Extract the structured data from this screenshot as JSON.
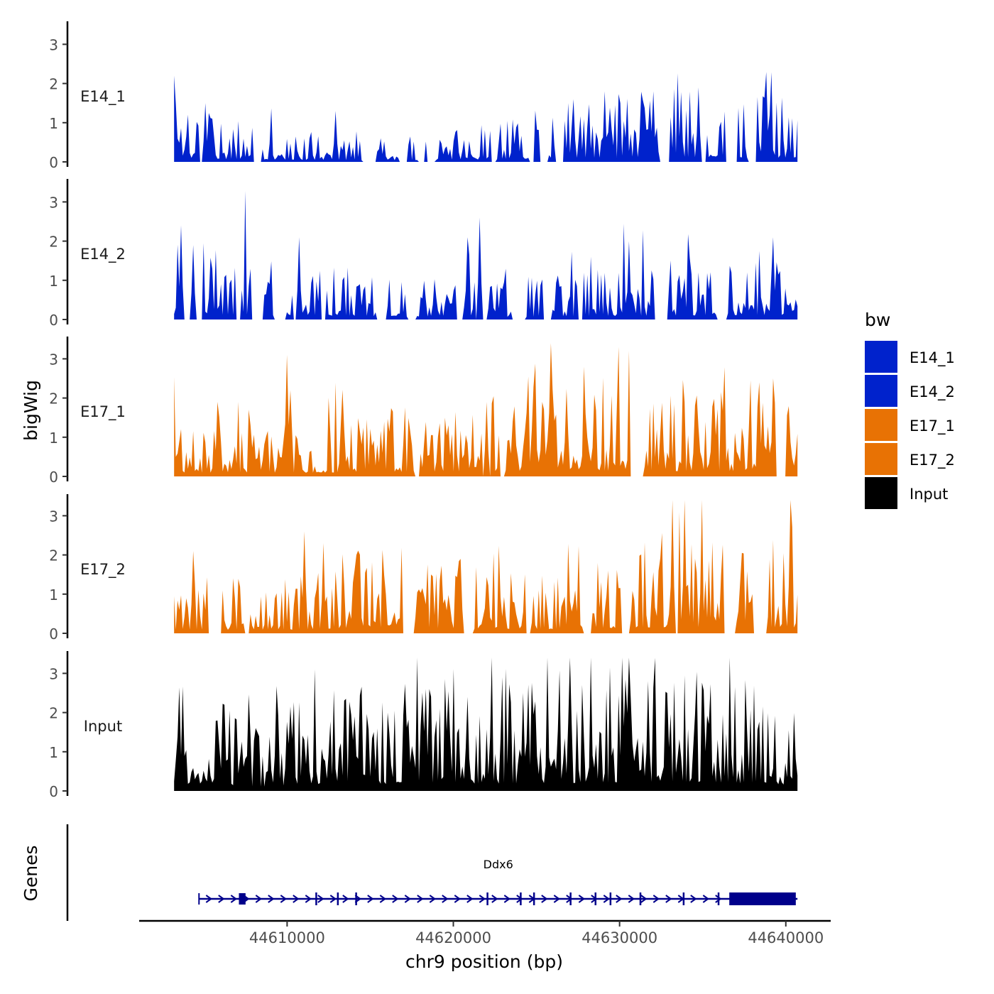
{
  "chart_data": {
    "type": "area",
    "ylabel": "bigWig",
    "xlabel": "chr9 position (bp)",
    "gene_track_label": "Genes",
    "legend": {
      "title": "bw",
      "position": "right",
      "entries": [
        {
          "name": "E14_1",
          "color": "#0022CC"
        },
        {
          "name": "E14_2",
          "color": "#0022CC"
        },
        {
          "name": "E17_1",
          "color": "#E87204"
        },
        {
          "name": "E17_2",
          "color": "#E87204"
        },
        {
          "name": "Input",
          "color": "#000000"
        }
      ]
    },
    "xlim": [
      44601100,
      44642700
    ],
    "data_x_range": [
      44603200,
      44640700
    ],
    "x_ticks": [
      44610000,
      44620000,
      44630000,
      44640000
    ],
    "x_tick_labels": [
      "44610000",
      "44620000",
      "44630000",
      "44640000"
    ],
    "ylim": [
      0,
      3.5
    ],
    "y_ticks": [
      0,
      1,
      2,
      3
    ],
    "y_tick_labels": [
      "0",
      "1",
      "2",
      "3"
    ],
    "series": [
      {
        "name": "E14_1",
        "color": "#0022CC",
        "seed": 11,
        "profile": [
          [
            0.0,
            0.9
          ],
          [
            0.05,
            0.5
          ],
          [
            0.3,
            0.25
          ],
          [
            0.45,
            0.35
          ],
          [
            0.65,
            0.7
          ],
          [
            0.8,
            0.8
          ],
          [
            1.0,
            0.7
          ]
        ],
        "gap_rate": 0.16,
        "peaks": [
          [
            0.0,
            2.2
          ],
          [
            0.05,
            1.5
          ],
          [
            0.26,
            1.3
          ],
          [
            0.64,
            1.6
          ],
          [
            0.69,
            1.8
          ],
          [
            0.77,
            1.8
          ],
          [
            0.84,
            1.9
          ]
        ]
      },
      {
        "name": "E14_2",
        "color": "#0022CC",
        "seed": 23,
        "profile": [
          [
            0.0,
            0.9
          ],
          [
            0.2,
            0.7
          ],
          [
            0.4,
            0.5
          ],
          [
            0.5,
            0.4
          ],
          [
            0.7,
            0.6
          ],
          [
            1.0,
            0.8
          ]
        ],
        "gap_rate": 0.18,
        "peaks": [
          [
            0.01,
            2.4
          ],
          [
            0.03,
            1.9
          ],
          [
            0.2,
            2.1
          ],
          [
            0.47,
            2.1
          ],
          [
            0.49,
            2.6
          ],
          [
            0.73,
            2.0
          ],
          [
            0.96,
            2.1
          ]
        ]
      },
      {
        "name": "E17_1",
        "color": "#E87204",
        "seed": 37,
        "profile": [
          [
            0.0,
            0.6
          ],
          [
            0.2,
            0.6
          ],
          [
            0.4,
            0.8
          ],
          [
            0.6,
            1.0
          ],
          [
            0.8,
            0.9
          ],
          [
            1.0,
            0.8
          ]
        ],
        "gap_rate": 0.05,
        "peaks": [
          [
            0.18,
            3.1
          ],
          [
            0.07,
            1.9
          ],
          [
            0.94,
            2.4
          ],
          [
            0.96,
            2.5
          ],
          [
            0.5,
            1.9
          ],
          [
            0.59,
            1.9
          ]
        ]
      },
      {
        "name": "E17_2",
        "color": "#E87204",
        "seed": 53,
        "profile": [
          [
            0.0,
            0.6
          ],
          [
            0.2,
            0.6
          ],
          [
            0.3,
            1.0
          ],
          [
            0.6,
            0.7
          ],
          [
            0.75,
            1.0
          ],
          [
            1.0,
            1.0
          ]
        ],
        "gap_rate": 0.09,
        "peaks": [
          [
            0.03,
            2.1
          ],
          [
            0.21,
            2.6
          ],
          [
            0.8,
            3.4
          ],
          [
            0.82,
            3.4
          ],
          [
            0.99,
            3.4
          ],
          [
            0.24,
            2.3
          ]
        ]
      },
      {
        "name": "Input",
        "color": "#000000",
        "seed": 71,
        "profile": [
          [
            0.0,
            1.3
          ],
          [
            0.15,
            0.7
          ],
          [
            0.2,
            1.1
          ],
          [
            0.4,
            1.2
          ],
          [
            0.6,
            1.3
          ],
          [
            0.8,
            1.6
          ],
          [
            1.0,
            1.0
          ]
        ],
        "gap_rate": 0.0,
        "peaks": [
          [
            0.41,
            2.6
          ],
          [
            0.76,
            2.8
          ],
          [
            0.56,
            2.5
          ],
          [
            0.47,
            2.4
          ],
          [
            0.08,
            2.2
          ],
          [
            0.79,
            2.5
          ]
        ]
      }
    ],
    "gene": {
      "name": "Ddx6",
      "color": "#00008B",
      "start": 44604700,
      "end": 44640700,
      "exons": [
        [
          44607100,
          44607500
        ],
        [
          44611700,
          44611750
        ],
        [
          44613000,
          44613050
        ],
        [
          44614100,
          44614150
        ],
        [
          44622000,
          44622050
        ],
        [
          44624000,
          44624050
        ],
        [
          44624800,
          44624850
        ],
        [
          44627000,
          44627050
        ],
        [
          44628500,
          44628550
        ],
        [
          44629400,
          44629450
        ],
        [
          44631200,
          44631250
        ],
        [
          44633800,
          44633850
        ],
        [
          44635900,
          44635950
        ]
      ],
      "utr": [
        44636600,
        44640600
      ]
    }
  }
}
